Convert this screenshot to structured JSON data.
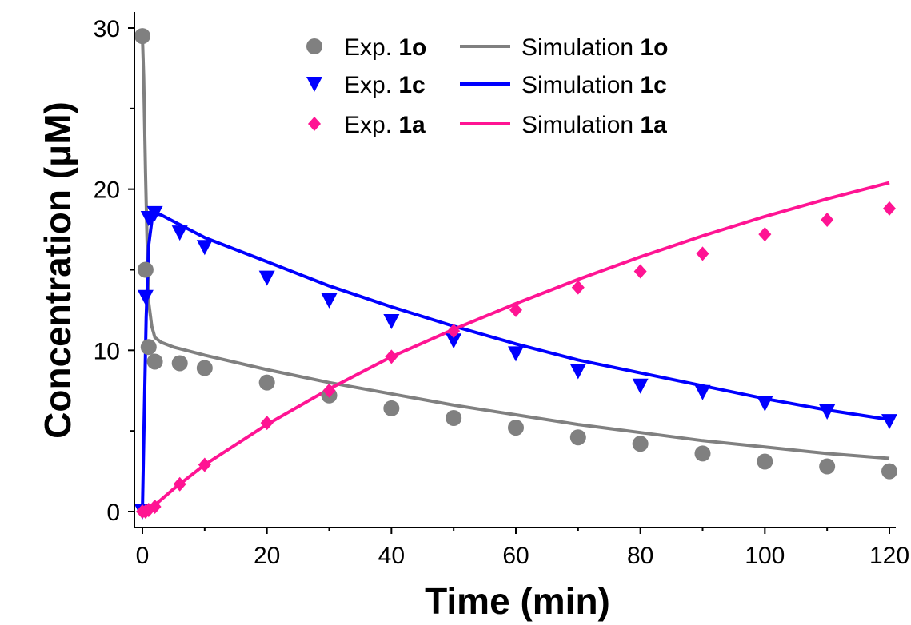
{
  "chart_data": {
    "type": "scatter",
    "xlabel": "Time (min)",
    "ylabel": "Concentration (μM)",
    "xlim": [
      0,
      120
    ],
    "ylim": [
      0,
      30
    ],
    "x_ticks": [
      "0",
      "20",
      "40",
      "60",
      "80",
      "100",
      "120"
    ],
    "y_ticks": [
      "0",
      "10",
      "20",
      "30"
    ],
    "grid": false,
    "legend_position": "top-center",
    "series": [
      {
        "name": "Exp. 1o",
        "label_prefix": "Exp. ",
        "label_bold": "1o",
        "kind": "points",
        "marker": "circle",
        "color": "#808080",
        "x": [
          0,
          0.5,
          1,
          2,
          6,
          10,
          20,
          30,
          40,
          50,
          60,
          70,
          80,
          90,
          100,
          110,
          120
        ],
        "y": [
          29.5,
          15.0,
          10.2,
          9.3,
          9.2,
          8.9,
          8.0,
          7.2,
          6.4,
          5.8,
          5.2,
          4.6,
          4.2,
          3.6,
          3.1,
          2.8,
          2.5
        ]
      },
      {
        "name": "Exp. 1c",
        "label_prefix": "Exp. ",
        "label_bold": "1c",
        "kind": "points",
        "marker": "triangle-down",
        "color": "#0000ff",
        "x": [
          0,
          0.5,
          1,
          2,
          6,
          10,
          20,
          30,
          40,
          50,
          60,
          70,
          80,
          90,
          100,
          110,
          120
        ],
        "y": [
          0,
          13.3,
          18.2,
          18.5,
          17.3,
          16.4,
          14.5,
          13.1,
          11.8,
          10.6,
          9.8,
          8.7,
          7.8,
          7.4,
          6.7,
          6.2,
          5.6
        ]
      },
      {
        "name": "Exp. 1a",
        "label_prefix": "Exp. ",
        "label_bold": "1a",
        "kind": "points",
        "marker": "diamond",
        "color": "#ff1493",
        "x": [
          0,
          0.5,
          1,
          2,
          6,
          10,
          20,
          30,
          40,
          50,
          60,
          70,
          80,
          90,
          100,
          110,
          120
        ],
        "y": [
          0,
          0,
          0.1,
          0.3,
          1.7,
          2.9,
          5.5,
          7.5,
          9.6,
          11.2,
          12.5,
          13.9,
          14.9,
          16.0,
          17.2,
          18.1,
          18.8
        ]
      },
      {
        "name": "Simulation 1o",
        "label_prefix": "Simulation ",
        "label_bold": "1o",
        "kind": "line",
        "color": "#808080",
        "x": [
          0,
          0.2,
          0.5,
          0.8,
          1,
          1.5,
          2,
          3,
          5,
          10,
          20,
          30,
          40,
          50,
          60,
          70,
          80,
          90,
          100,
          110,
          120
        ],
        "y": [
          29.5,
          27,
          21,
          16,
          13,
          11.5,
          10.8,
          10.5,
          10.2,
          9.7,
          8.8,
          8.0,
          7.3,
          6.6,
          6.0,
          5.4,
          4.9,
          4.4,
          4.0,
          3.6,
          3.3
        ]
      },
      {
        "name": "Simulation 1c",
        "label_prefix": "Simulation ",
        "label_bold": "1c",
        "kind": "line",
        "color": "#0000ff",
        "x": [
          0,
          0.3,
          0.6,
          1,
          1.5,
          2,
          3,
          5,
          10,
          20,
          30,
          40,
          50,
          60,
          70,
          80,
          90,
          100,
          110,
          120
        ],
        "y": [
          0,
          6,
          12,
          16.5,
          18.0,
          18.5,
          18.4,
          18.0,
          17.0,
          15.5,
          14.0,
          12.7,
          11.5,
          10.4,
          9.4,
          8.6,
          7.8,
          7.0,
          6.3,
          5.7
        ]
      },
      {
        "name": "Simulation 1a",
        "label_prefix": "Simulation ",
        "label_bold": "1a",
        "kind": "line",
        "color": "#ff1493",
        "x": [
          0,
          1,
          2,
          5,
          10,
          20,
          30,
          40,
          50,
          60,
          70,
          80,
          90,
          100,
          110,
          120
        ],
        "y": [
          0,
          0.1,
          0.4,
          1.4,
          2.9,
          5.4,
          7.6,
          9.6,
          11.3,
          12.9,
          14.4,
          15.8,
          17.1,
          18.3,
          19.4,
          20.4
        ]
      }
    ]
  }
}
